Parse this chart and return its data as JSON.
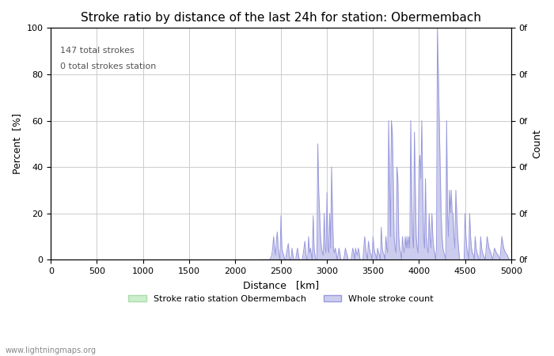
{
  "title": "Stroke ratio by distance of the last 24h for station: Obermembach",
  "xlabel": "Distance   [km]",
  "ylabel": "Percent  [%]",
  "ylabel_right": "Count",
  "annotation_line1": "147 total strokes",
  "annotation_line2": "0 total strokes station",
  "watermark": "www.lightningmaps.org",
  "legend_station": "Stroke ratio station Obermembach",
  "legend_whole": "Whole stroke count",
  "xlim": [
    0,
    5000
  ],
  "ylim": [
    0,
    100
  ],
  "xticks": [
    0,
    500,
    1000,
    1500,
    2000,
    2500,
    3000,
    3500,
    4000,
    4500,
    5000
  ],
  "yticks": [
    0,
    20,
    40,
    60,
    80,
    100
  ],
  "yticks_right": [
    0,
    20,
    40,
    60,
    80,
    100
  ],
  "ytick_right_labels": [
    "0f",
    "0f",
    "0f",
    "0f",
    "0f",
    "0f"
  ],
  "background_color": "#ffffff",
  "grid_color": "#cccccc",
  "stroke_color": "#9999dd",
  "stroke_fill": "#ccccee",
  "station_color": "#aaddaa",
  "station_fill": "#cceecc",
  "whole_stroke_x": [
    2300,
    2320,
    2340,
    2360,
    2380,
    2400,
    2410,
    2420,
    2430,
    2440,
    2450,
    2460,
    2470,
    2480,
    2490,
    2500,
    2510,
    2520,
    2530,
    2540,
    2550,
    2560,
    2570,
    2580,
    2590,
    2600,
    2610,
    2620,
    2630,
    2640,
    2650,
    2660,
    2670,
    2680,
    2690,
    2700,
    2710,
    2720,
    2730,
    2740,
    2750,
    2760,
    2770,
    2780,
    2790,
    2800,
    2810,
    2820,
    2830,
    2840,
    2850,
    2860,
    2870,
    2880,
    2890,
    2900,
    2910,
    2920,
    2930,
    2940,
    2950,
    2960,
    2970,
    2980,
    2990,
    3000,
    3010,
    3020,
    3030,
    3040,
    3050,
    3060,
    3070,
    3080,
    3090,
    3100,
    3110,
    3120,
    3130,
    3140,
    3150,
    3160,
    3170,
    3180,
    3190,
    3200,
    3210,
    3220,
    3230,
    3240,
    3250,
    3260,
    3270,
    3280,
    3290,
    3300,
    3310,
    3320,
    3330,
    3340,
    3350,
    3360,
    3370,
    3380,
    3390,
    3400,
    3410,
    3420,
    3430,
    3440,
    3450,
    3460,
    3470,
    3480,
    3490,
    3500,
    3510,
    3520,
    3530,
    3540,
    3550,
    3560,
    3570,
    3580,
    3590,
    3600,
    3610,
    3620,
    3630,
    3640,
    3650,
    3660,
    3670,
    3680,
    3690,
    3700,
    3710,
    3720,
    3730,
    3740,
    3750,
    3760,
    3770,
    3780,
    3790,
    3800,
    3810,
    3820,
    3830,
    3840,
    3850,
    3860,
    3870,
    3880,
    3890,
    3900,
    3910,
    3920,
    3930,
    3940,
    3950,
    3960,
    3970,
    3980,
    3990,
    4000,
    4010,
    4020,
    4030,
    4040,
    4050,
    4060,
    4070,
    4080,
    4090,
    4100,
    4110,
    4120,
    4130,
    4140,
    4150,
    4160,
    4170,
    4180,
    4190,
    4200,
    4210,
    4220,
    4230,
    4240,
    4250,
    4260,
    4270,
    4280,
    4290,
    4300,
    4310,
    4320,
    4330,
    4340,
    4350,
    4360,
    4370,
    4380,
    4390,
    4400,
    4410,
    4420,
    4430,
    4440,
    4450,
    4460,
    4470,
    4480,
    4490,
    4500,
    4510,
    4520,
    4530,
    4540,
    4550,
    4560,
    4570,
    4580,
    4590,
    4600,
    4610,
    4620,
    4630,
    4640,
    4650,
    4660,
    4670,
    4680,
    4690,
    4700,
    4720,
    4740,
    4760,
    4780,
    4800,
    4820,
    4840,
    4860,
    4880,
    4900,
    4920,
    4940,
    4960,
    4980,
    5000
  ],
  "whole_stroke_y": [
    0,
    0,
    0,
    0,
    0,
    2,
    5,
    10,
    5,
    2,
    8,
    12,
    5,
    2,
    0,
    19,
    5,
    3,
    2,
    0,
    0,
    3,
    5,
    7,
    2,
    0,
    0,
    5,
    2,
    0,
    0,
    0,
    3,
    5,
    2,
    0,
    0,
    0,
    0,
    2,
    5,
    8,
    3,
    0,
    0,
    10,
    3,
    5,
    2,
    0,
    19,
    5,
    2,
    0,
    0,
    50,
    30,
    20,
    10,
    5,
    3,
    2,
    20,
    5,
    3,
    29,
    5,
    3,
    20,
    5,
    40,
    20,
    5,
    3,
    5,
    3,
    0,
    2,
    5,
    3,
    0,
    0,
    0,
    0,
    2,
    5,
    3,
    2,
    0,
    0,
    0,
    0,
    2,
    5,
    3,
    0,
    5,
    3,
    2,
    5,
    3,
    0,
    0,
    0,
    0,
    5,
    10,
    5,
    2,
    0,
    8,
    5,
    3,
    2,
    0,
    10,
    5,
    3,
    2,
    0,
    5,
    3,
    2,
    0,
    14,
    5,
    3,
    2,
    0,
    10,
    5,
    3,
    60,
    35,
    10,
    60,
    55,
    35,
    10,
    5,
    3,
    40,
    35,
    10,
    5,
    3,
    0,
    10,
    5,
    3,
    10,
    5,
    10,
    5,
    10,
    5,
    60,
    30,
    10,
    5,
    55,
    30,
    10,
    5,
    3,
    40,
    45,
    35,
    60,
    30,
    10,
    5,
    35,
    10,
    5,
    3,
    20,
    10,
    5,
    20,
    10,
    5,
    3,
    0,
    5,
    100,
    80,
    60,
    40,
    20,
    10,
    5,
    3,
    2,
    0,
    60,
    20,
    10,
    30,
    20,
    30,
    20,
    20,
    10,
    5,
    30,
    20,
    10,
    5,
    0,
    0,
    0,
    0,
    0,
    0,
    20,
    10,
    5,
    3,
    0,
    20,
    10,
    5,
    3,
    2,
    0,
    10,
    5,
    3,
    2,
    0,
    0,
    10,
    5,
    3,
    2,
    0,
    10,
    5,
    3,
    0,
    5,
    3,
    2,
    0,
    10,
    5,
    3,
    2,
    0,
    0
  ],
  "title_fontsize": 11,
  "axis_fontsize": 9,
  "tick_fontsize": 8
}
